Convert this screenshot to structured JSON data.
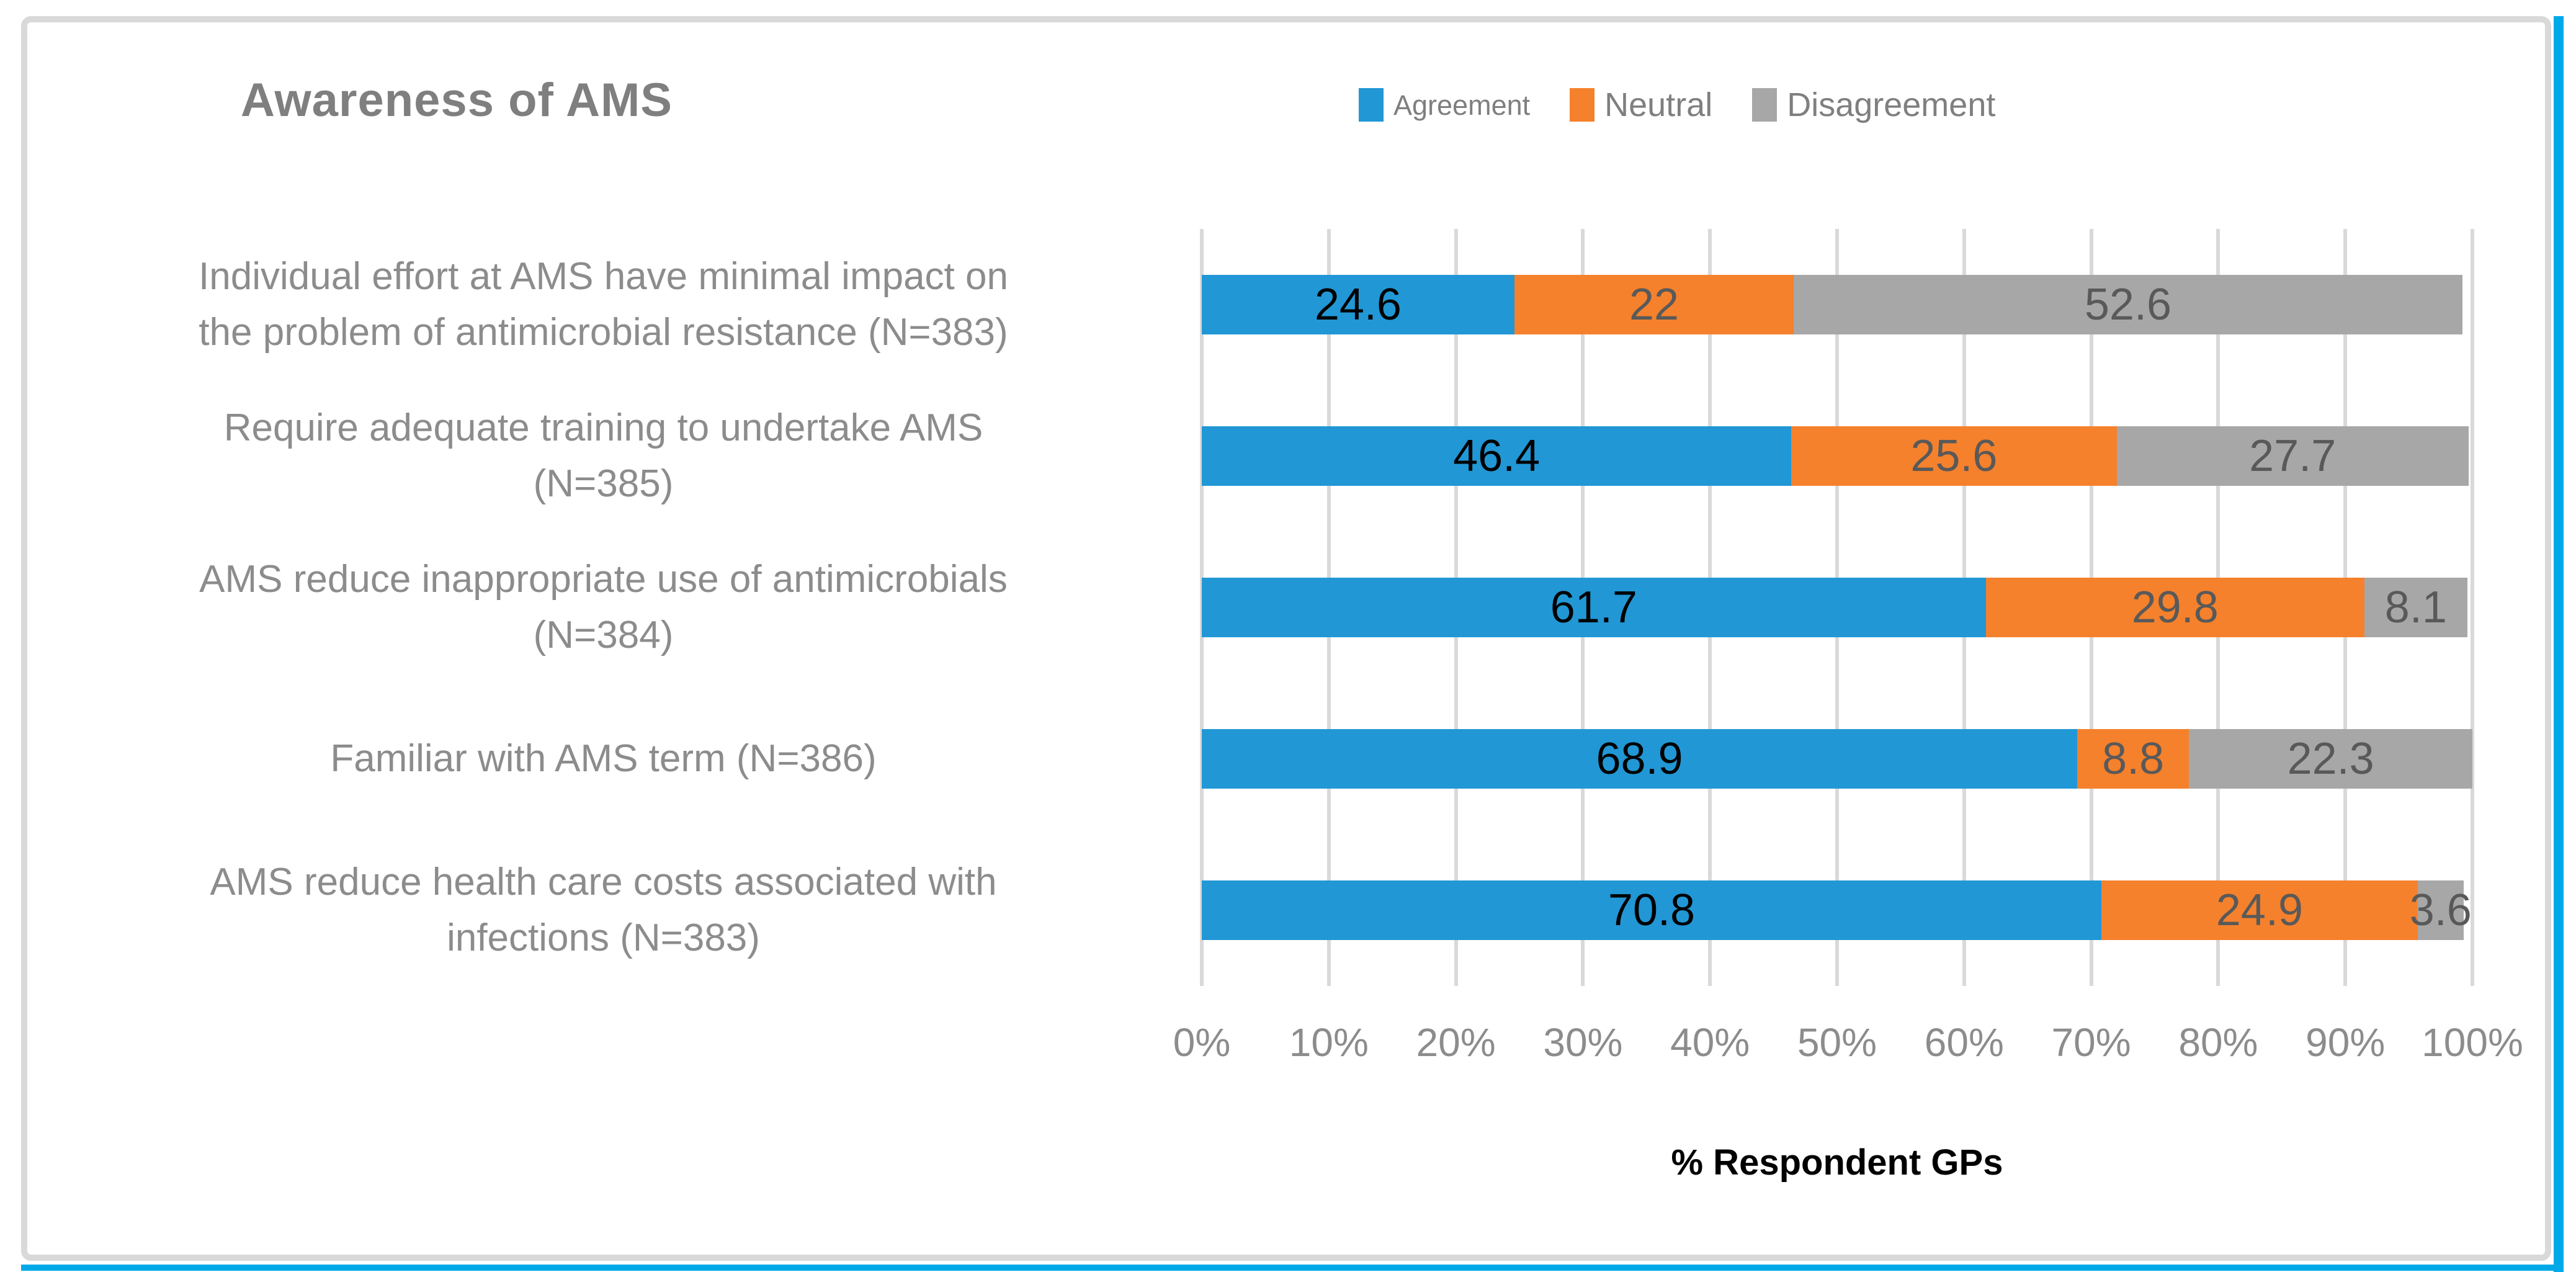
{
  "figure": {
    "title": "Awareness of AMS",
    "axis_title": "% Respondent GPs"
  },
  "legend": [
    {
      "label": "Agreement",
      "color": "#2197D5"
    },
    {
      "label": "Neutral",
      "color": "#F5812C"
    },
    {
      "label": "Disagreement",
      "color": "#A7A7A7"
    }
  ],
  "chart_data": {
    "type": "bar",
    "orientation": "horizontal-stacked",
    "title": "Awareness of AMS",
    "xlabel": "% Respondent GPs",
    "ylabel": "",
    "xlim": [
      0,
      100
    ],
    "grid": true,
    "legend_position": "top-right",
    "categories": [
      "Individual effort at AMS have minimal impact on\nthe problem of antimicrobial resistance (N=383)",
      "Require adequate training to undertake AMS\n(N=385)",
      "AMS reduce inappropriate use of antimicrobials\n(N=384)",
      "Familiar with AMS term (N=386)",
      "AMS reduce health care costs associated with\ninfections (N=383)"
    ],
    "series": [
      {
        "name": "Agreement",
        "color": "#2197D5",
        "label_color": "#000000",
        "values": [
          24.6,
          46.4,
          61.7,
          68.9,
          70.8
        ],
        "labels": [
          "24.6",
          "46.4",
          "61.7",
          "68.9",
          "70.8"
        ]
      },
      {
        "name": "Neutral",
        "color": "#F5812C",
        "label_color": "#595959",
        "values": [
          22,
          25.6,
          29.8,
          8.8,
          24.9
        ],
        "labels": [
          "22",
          "25.6",
          "29.8",
          "8.8",
          "24.9"
        ]
      },
      {
        "name": "Disagreement",
        "color": "#A7A7A7",
        "label_color": "#595959",
        "values": [
          52.6,
          27.7,
          8.1,
          22.3,
          3.6
        ],
        "labels": [
          "52.6",
          "27.7",
          "8.1",
          "22.3",
          "3.6"
        ]
      }
    ],
    "x_ticks": [
      "0%",
      "10%",
      "20%",
      "30%",
      "40%",
      "50%",
      "60%",
      "70%",
      "80%",
      "90%",
      "100%"
    ]
  },
  "colors": {
    "frame_border": "#D9D9D9",
    "accent_border": "#00A9E8",
    "gridline": "#D9D9D9",
    "title_text": "#7F7F7F",
    "legend_text": "#7F7F7F",
    "category_text": "#8C8C8C",
    "tick_text": "#8C8C8C",
    "axis_title_text": "#000000"
  }
}
